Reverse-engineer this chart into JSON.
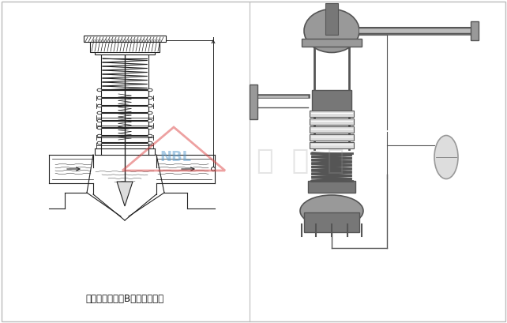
{
  "background_color": "#ffffff",
  "border_color": "#bbbbbb",
  "left_panel_caption": "阀后压力调节（B型）工作原理",
  "watermark_triangle_color": "#dd4444",
  "watermark_nbl_color": "#5599cc",
  "watermark_chinese_color": "#999999",
  "divider_color": "#bbbbbb",
  "lc": "#222222",
  "fig_width": 6.42,
  "fig_height": 4.09,
  "dpi": 100
}
